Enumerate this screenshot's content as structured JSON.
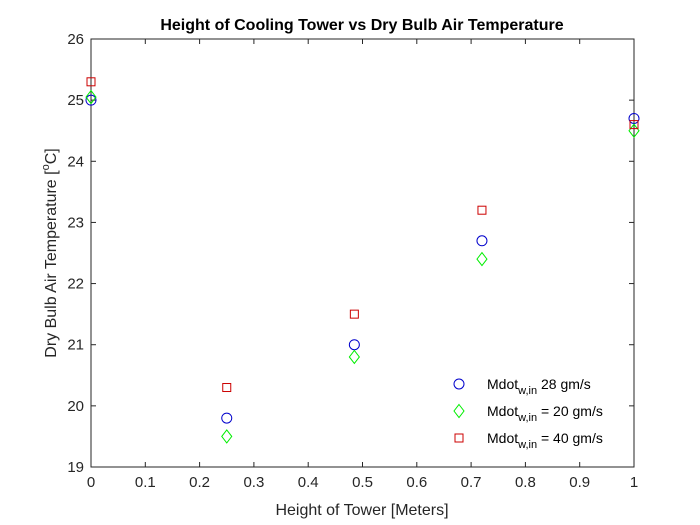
{
  "chart_data": {
    "type": "scatter",
    "title": "Height of Cooling Tower vs Dry Bulb Air Temperature",
    "xlabel": "Height of Tower [Meters]",
    "ylabel": {
      "before": "Dry Bulb Air Temperature [",
      "sup": "o",
      "after": "C]"
    },
    "xlim": [
      0,
      1
    ],
    "ylim": [
      19,
      26
    ],
    "xticks": [
      0,
      0.1,
      0.2,
      0.3,
      0.4,
      0.5,
      0.6,
      0.7,
      0.8,
      0.9,
      1
    ],
    "xtick_labels": [
      "0",
      "0.1",
      "0.2",
      "0.3",
      "0.4",
      "0.5",
      "0.6",
      "0.7",
      "0.8",
      "0.9",
      "1"
    ],
    "yticks": [
      19,
      20,
      21,
      22,
      23,
      24,
      25,
      26
    ],
    "ytick_labels": [
      "19",
      "20",
      "21",
      "22",
      "23",
      "24",
      "25",
      "26"
    ],
    "grid": false,
    "legend_position": "bottom-right",
    "series": [
      {
        "name": "Mdot_w,in 28 gm/s",
        "legend": {
          "base": "Mdot",
          "sub": "w,in",
          "rest": " 28 gm/s"
        },
        "marker": "circle",
        "color": "#0000cc",
        "x": [
          0,
          0.25,
          0.485,
          0.72,
          1
        ],
        "y": [
          25.0,
          19.8,
          21.0,
          22.7,
          24.7
        ]
      },
      {
        "name": "Mdot_w,in = 20 gm/s",
        "legend": {
          "base": "Mdot",
          "sub": "w,in",
          "rest": " = 20 gm/s"
        },
        "marker": "diamond",
        "color": "#00ee00",
        "x": [
          0,
          0.25,
          0.485,
          0.72,
          1
        ],
        "y": [
          25.05,
          19.5,
          20.8,
          22.4,
          24.5
        ]
      },
      {
        "name": "Mdot_w,in = 40 gm/s",
        "legend": {
          "base": "Mdot",
          "sub": "w,in",
          "rest": " = 40 gm/s"
        },
        "marker": "square",
        "color": "#cc0000",
        "x": [
          0,
          0.25,
          0.485,
          0.72,
          1
        ],
        "y": [
          25.3,
          20.3,
          21.5,
          23.2,
          24.6
        ]
      }
    ]
  }
}
